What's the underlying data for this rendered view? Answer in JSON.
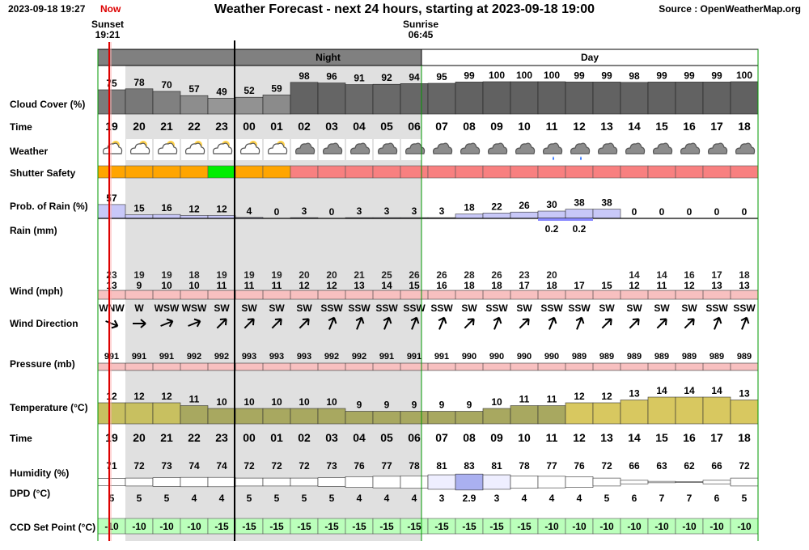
{
  "header": {
    "timestamp": "2023-09-18 19:27",
    "now_label": "Now",
    "title": "Weather Forecast - next 24 hours, starting at 2023-09-18 19:00",
    "source": "Source : OpenWeatherMap.org"
  },
  "sun": {
    "sunset_label": "Sunset",
    "sunset_time": "19:21",
    "sunrise_label": "Sunrise",
    "sunrise_time": "06:45"
  },
  "periods": {
    "night": "Night",
    "day": "Day"
  },
  "row_labels": {
    "cloud": "Cloud Cover (%)",
    "time": "Time",
    "weather": "Weather",
    "shutter": "Shutter Safety",
    "prob_rain": "Prob. of Rain (%)",
    "rain": "Rain (mm)",
    "wind": "Wind (mph)",
    "wind_dir": "Wind Direction",
    "pressure": "Pressure (mb)",
    "temperature": "Temperature (°C)",
    "time2": "Time",
    "humidity": "Humidity (%)",
    "dpd": "DPD (°C)",
    "ccd": "CCD Set Point (°C)"
  },
  "colors": {
    "now_line": "#dd0000",
    "night_bg": "#e0e0e0",
    "period_bar": "#808080",
    "shutter_unsafe": "#f88080",
    "shutter_marginal": "#ffa500",
    "shutter_safe": "#00ee00",
    "rain_bar": "#c8c8f8",
    "wind_bar": "#f8c0c0",
    "pressure_bar": "#f8c0c0",
    "ccd_cell": "#bbffbb"
  },
  "chart_data": {
    "type": "table",
    "hours": [
      "19",
      "20",
      "21",
      "22",
      "23",
      "00",
      "01",
      "02",
      "03",
      "04",
      "05",
      "06",
      "07",
      "08",
      "09",
      "10",
      "11",
      "12",
      "13",
      "14",
      "15",
      "16",
      "17",
      "18"
    ],
    "night_hours": [
      "20",
      "21",
      "22",
      "23",
      "00",
      "01",
      "02",
      "03",
      "04",
      "05",
      "06"
    ],
    "cloud_cover": [
      75,
      78,
      70,
      57,
      49,
      52,
      59,
      98,
      96,
      91,
      92,
      94,
      95,
      99,
      100,
      100,
      100,
      99,
      99,
      98,
      99,
      99,
      99,
      100
    ],
    "weather_icons": [
      "partly-cloudy-night-icon",
      "partly-cloudy-night-icon",
      "partly-cloudy-night-icon",
      "partly-cloudy-night-icon",
      "partly-cloudy-night-icon",
      "partly-cloudy-night-icon",
      "partly-cloudy-night-icon",
      "cloud-icon",
      "cloud-icon",
      "cloud-icon",
      "cloud-icon",
      "cloud-icon",
      "cloud-icon",
      "cloud-icon",
      "cloud-icon",
      "cloud-icon",
      "rain-cloud-icon",
      "rain-cloud-icon",
      "cloud-icon",
      "cloud-icon",
      "cloud-icon",
      "cloud-icon",
      "cloud-icon",
      "cloud-icon"
    ],
    "shutter_safety": [
      "marginal",
      "marginal",
      "marginal",
      "marginal",
      "safe",
      "marginal",
      "marginal",
      "unsafe",
      "unsafe",
      "unsafe",
      "unsafe",
      "unsafe",
      "unsafe",
      "unsafe",
      "unsafe",
      "unsafe",
      "unsafe",
      "unsafe",
      "unsafe",
      "unsafe",
      "unsafe",
      "unsafe",
      "unsafe",
      "unsafe"
    ],
    "prob_rain": [
      57,
      15,
      16,
      12,
      12,
      4,
      0,
      3,
      0,
      3,
      3,
      3,
      3,
      18,
      22,
      26,
      30,
      38,
      38,
      0,
      0,
      0,
      0,
      0
    ],
    "rain_mm": [
      "",
      "",
      "",
      "",
      "",
      "",
      "",
      "",
      "",
      "",
      "",
      "",
      "",
      "",
      "",
      "",
      "0.2",
      "0.2",
      "",
      "",
      "",
      "",
      "",
      ""
    ],
    "wind_gust": [
      23,
      19,
      19,
      18,
      19,
      19,
      19,
      20,
      20,
      21,
      25,
      26,
      26,
      28,
      26,
      23,
      20,
      "",
      "",
      14,
      14,
      16,
      17,
      18
    ],
    "wind_speed": [
      13,
      9,
      10,
      10,
      11,
      11,
      11,
      12,
      12,
      13,
      14,
      15,
      16,
      18,
      18,
      17,
      18,
      17,
      15,
      12,
      11,
      12,
      13,
      13
    ],
    "wind_direction": [
      "WNW",
      "W",
      "WSW",
      "WSW",
      "SW",
      "SW",
      "SW",
      "SW",
      "SSW",
      "SSW",
      "SSW",
      "SSW",
      "SSW",
      "SW",
      "SSW",
      "SW",
      "SSW",
      "SSW",
      "SW",
      "SW",
      "SW",
      "SW",
      "SSW",
      "SSW"
    ],
    "wind_direction_deg": [
      292,
      270,
      248,
      248,
      225,
      225,
      225,
      225,
      202,
      202,
      202,
      202,
      202,
      225,
      202,
      225,
      202,
      202,
      225,
      225,
      225,
      225,
      202,
      202
    ],
    "pressure": [
      991,
      991,
      991,
      992,
      992,
      993,
      993,
      993,
      992,
      992,
      991,
      991,
      991,
      990,
      990,
      990,
      990,
      989,
      989,
      989,
      989,
      989,
      989,
      989
    ],
    "temperature": [
      12,
      12,
      12,
      11,
      10,
      10,
      10,
      10,
      10,
      9,
      9,
      9,
      9,
      9,
      10,
      11,
      11,
      12,
      12,
      13,
      14,
      14,
      14,
      13
    ],
    "humidity": [
      71,
      72,
      73,
      74,
      74,
      72,
      72,
      72,
      73,
      76,
      77,
      78,
      81,
      83,
      81,
      78,
      77,
      76,
      72,
      66,
      63,
      62,
      66,
      72
    ],
    "dpd": [
      "5",
      "5",
      "5",
      "4",
      "4",
      "5",
      "5",
      "5",
      "5",
      "4",
      "4",
      "4",
      "3",
      "2.9",
      "3",
      "4",
      "4",
      "4",
      "5",
      "6",
      "7",
      "7",
      "6",
      "5"
    ],
    "ccd_set_point": [
      -10,
      -10,
      -10,
      -10,
      -15,
      -15,
      -15,
      -15,
      -15,
      -15,
      -15,
      -15,
      -15,
      -15,
      -15,
      -15,
      -10,
      -10,
      -10,
      -10,
      -10,
      -10,
      -10,
      -10
    ]
  }
}
